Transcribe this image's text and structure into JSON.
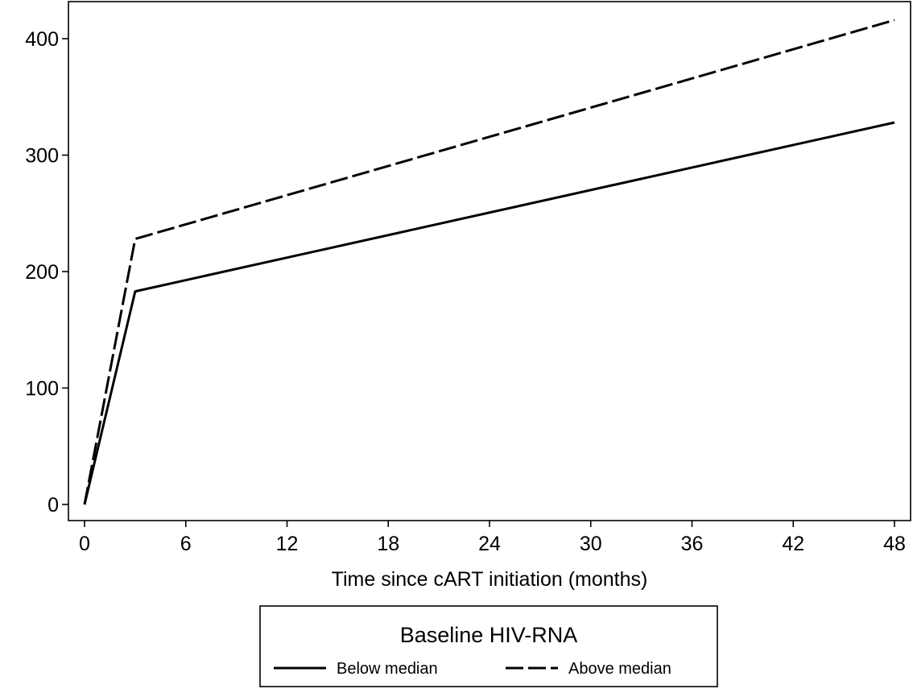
{
  "chart_data": {
    "type": "line",
    "title": "",
    "xlabel": "Time since cART initiation (months)",
    "ylabel": "",
    "xlim": [
      0,
      48
    ],
    "ylim": [
      0,
      400
    ],
    "x_ticks": [
      0,
      6,
      12,
      18,
      24,
      30,
      36,
      42,
      48
    ],
    "y_ticks": [
      0,
      100,
      200,
      300,
      400
    ],
    "grid": false,
    "series": [
      {
        "name": "Below median",
        "style": "solid",
        "color": "#000000",
        "x": [
          0,
          3,
          48
        ],
        "y": [
          0,
          183,
          328
        ]
      },
      {
        "name": "Above median",
        "style": "dashed",
        "color": "#000000",
        "x": [
          0,
          3,
          48
        ],
        "y": [
          0,
          228,
          416
        ]
      }
    ],
    "legend": {
      "title": "Baseline HIV-RNA",
      "position": "bottom-center"
    }
  }
}
